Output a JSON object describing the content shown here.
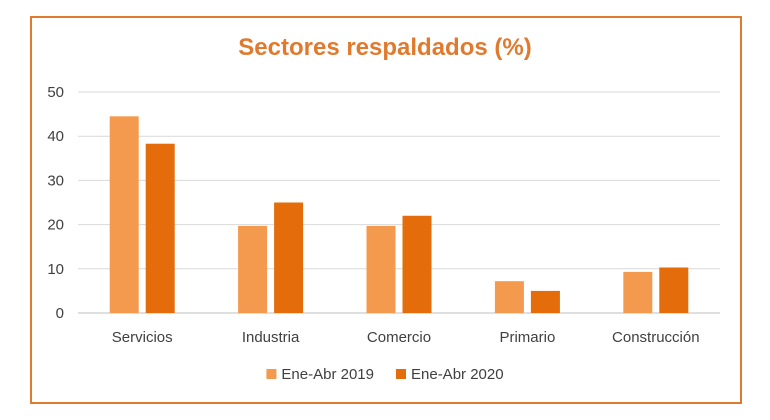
{
  "chart_data": {
    "type": "bar",
    "title": "Sectores respaldados (%)",
    "categories": [
      "Servicios",
      "Industria",
      "Comercio",
      "Primario",
      "Construcción"
    ],
    "series": [
      {
        "name": "Ene-Abr 2019",
        "values": [
          44.5,
          19.7,
          19.7,
          7.2,
          9.3
        ],
        "color": "#f49a4e"
      },
      {
        "name": "Ene-Abr 2020",
        "values": [
          38.3,
          25.0,
          22.0,
          5.0,
          10.3
        ],
        "color": "#e46c0a"
      }
    ],
    "ylim": [
      0,
      50
    ],
    "yticks": [
      0,
      10,
      20,
      30,
      40,
      50
    ],
    "grid": true,
    "legend": "bottom"
  }
}
